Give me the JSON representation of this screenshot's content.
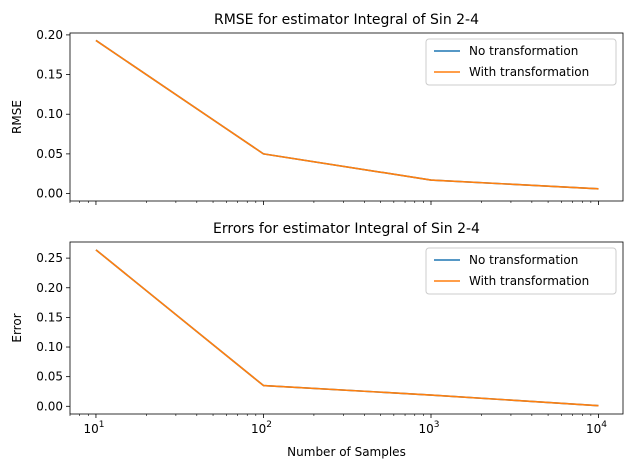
{
  "chart_data": [
    {
      "type": "line",
      "title": "RMSE for estimator Integral of Sin 2-4",
      "xlabel": "",
      "ylabel": "RMSE",
      "xscale": "log",
      "xlim": [
        7,
        14000
      ],
      "ylim": [
        -0.0094,
        0.2024
      ],
      "x": [
        10,
        100,
        1000,
        10000
      ],
      "x_tick_labels": [],
      "y_ticks": [
        0.0,
        0.05,
        0.1,
        0.15,
        0.2
      ],
      "y_tick_labels": [
        "0.00",
        "0.05",
        "0.10",
        "0.15",
        "0.20"
      ],
      "legend_position": "top-right",
      "series": [
        {
          "name": "No transformation",
          "color": "#1f77b4",
          "values": [
            0.193,
            0.05,
            0.017,
            0.006
          ]
        },
        {
          "name": "With transformation",
          "color": "#ff7f0e",
          "values": [
            0.193,
            0.05,
            0.017,
            0.006
          ]
        }
      ]
    },
    {
      "type": "line",
      "title": "Errors for estimator Integral of Sin 2-4",
      "xlabel": "Number of Samples",
      "ylabel": "Error",
      "xscale": "log",
      "xlim": [
        7,
        14000
      ],
      "ylim": [
        -0.013,
        0.2772
      ],
      "x": [
        10,
        100,
        1000,
        10000
      ],
      "x_tick_labels": [
        {
          "base": "10",
          "exp": "1"
        },
        {
          "base": "10",
          "exp": "2"
        },
        {
          "base": "10",
          "exp": "3"
        },
        {
          "base": "10",
          "exp": "4"
        }
      ],
      "y_ticks": [
        0.0,
        0.05,
        0.1,
        0.15,
        0.2,
        0.25
      ],
      "y_tick_labels": [
        "0.00",
        "0.05",
        "0.10",
        "0.15",
        "0.20",
        "0.25"
      ],
      "legend_position": "top-right",
      "series": [
        {
          "name": "No transformation",
          "color": "#1f77b4",
          "values": [
            0.264,
            0.035,
            0.019,
            0.001
          ]
        },
        {
          "name": "With transformation",
          "color": "#ff7f0e",
          "values": [
            0.264,
            0.035,
            0.019,
            0.001
          ]
        }
      ]
    }
  ]
}
